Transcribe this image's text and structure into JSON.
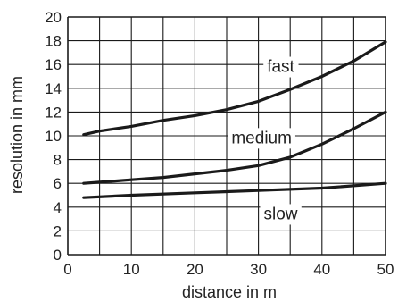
{
  "chart_data": {
    "type": "line",
    "title": "",
    "xlabel": "distance in m",
    "ylabel": "resolution in mm",
    "xlim": [
      0,
      50
    ],
    "ylim": [
      0,
      20
    ],
    "xticks": [
      0,
      10,
      20,
      30,
      40,
      50
    ],
    "yticks": [
      0,
      2,
      4,
      6,
      8,
      10,
      12,
      14,
      16,
      18,
      20
    ],
    "grid": true,
    "legend": "inline labels",
    "line_color": "#1a1a1a",
    "series": [
      {
        "name": "fast",
        "x": [
          2.5,
          5,
          10,
          15,
          20,
          25,
          30,
          35,
          40,
          45,
          50
        ],
        "y": [
          10.1,
          10.4,
          10.8,
          11.3,
          11.7,
          12.2,
          12.9,
          13.9,
          15.0,
          16.3,
          17.9
        ]
      },
      {
        "name": "medium",
        "x": [
          2.5,
          5,
          10,
          15,
          20,
          25,
          30,
          35,
          40,
          45,
          50
        ],
        "y": [
          6.0,
          6.1,
          6.3,
          6.5,
          6.8,
          7.1,
          7.5,
          8.2,
          9.3,
          10.6,
          12.0
        ]
      },
      {
        "name": "slow",
        "x": [
          2.5,
          10,
          20,
          30,
          40,
          50
        ],
        "y": [
          4.8,
          5.0,
          5.2,
          5.4,
          5.6,
          6.0
        ]
      }
    ]
  }
}
